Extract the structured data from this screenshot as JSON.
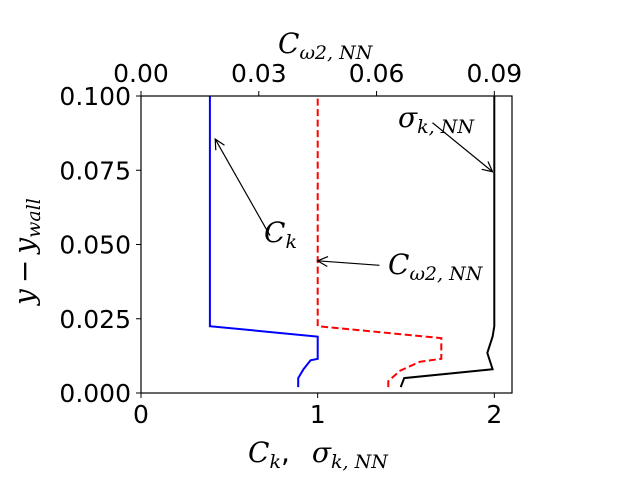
{
  "chart_data": {
    "type": "line",
    "title": "",
    "xlabel_bottom": "C_k,  σ_k,NN",
    "xlabel_top": "C_ω2,NN",
    "ylabel": "y − y_wall",
    "xlim_bottom": [
      0,
      2.1
    ],
    "xlim_top": [
      0,
      0.0945
    ],
    "ylim": [
      0,
      0.1
    ],
    "xticks_bottom": [
      "0",
      "1",
      "2"
    ],
    "xticks_top": [
      "0.00",
      "0.03",
      "0.06",
      "0.09"
    ],
    "yticks": [
      "0.000",
      "0.025",
      "0.050",
      "0.075",
      "0.100"
    ],
    "grid": false,
    "series": [
      {
        "name": "C_k",
        "axis": "bottom",
        "color": "#0000ff",
        "linestyle": "solid",
        "points": [
          [
            0.89,
            0.002
          ],
          [
            0.89,
            0.005
          ],
          [
            0.92,
            0.008
          ],
          [
            0.96,
            0.011
          ],
          [
            1.0,
            0.0115
          ],
          [
            1.0,
            0.019
          ],
          [
            0.39,
            0.0225
          ],
          [
            0.39,
            0.1
          ]
        ]
      },
      {
        "name": "C_ω2,NN",
        "axis": "top",
        "color": "#ff0000",
        "linestyle": "dashed",
        "points": [
          [
            0.063,
            0.002
          ],
          [
            0.063,
            0.004
          ],
          [
            0.066,
            0.0075
          ],
          [
            0.071,
            0.0105
          ],
          [
            0.0765,
            0.0115
          ],
          [
            0.0765,
            0.0185
          ],
          [
            0.045,
            0.0225
          ],
          [
            0.045,
            0.1
          ]
        ]
      },
      {
        "name": "σ_k,NN",
        "axis": "bottom",
        "color": "#000000",
        "linestyle": "solid",
        "points": [
          [
            1.47,
            0.002
          ],
          [
            1.49,
            0.005
          ],
          [
            1.99,
            0.008
          ],
          [
            1.96,
            0.0135
          ],
          [
            1.99,
            0.019
          ],
          [
            2.0,
            0.0225
          ],
          [
            2.0,
            0.1
          ]
        ]
      }
    ],
    "annotations": [
      {
        "name": "C_k",
        "pointer_to": [
          0.42,
          0.0855
        ],
        "text_at": [
          0.73,
          0.053
        ]
      },
      {
        "name": "C_ω2,NN",
        "pointer_to": [
          1.0,
          0.0445
        ],
        "text_at": [
          1.35,
          0.043
        ]
      },
      {
        "name": "σ_k,NN",
        "pointer_to": [
          1.99,
          0.0745
        ],
        "text_at": [
          1.65,
          0.091
        ]
      }
    ]
  }
}
